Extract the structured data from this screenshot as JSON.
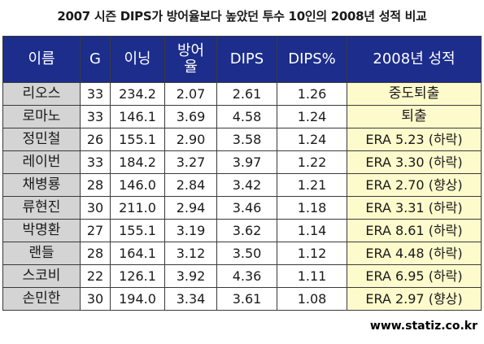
{
  "title": "2007 시즌 DIPS가 방어율보다 높았던 투수 10인의 2008년 성적 비교",
  "columns": {
    "name": "이름",
    "games": "G",
    "innings": "이닝",
    "era": "방어\n율",
    "dips": "DIPS",
    "dips_pct": "DIPS%",
    "result": "2008년 성적"
  },
  "rows": [
    {
      "name": "리오스",
      "g": "33",
      "ip": "234.2",
      "era": "2.07",
      "dips": "2.61",
      "pct": "1.26",
      "result": "중도퇴출"
    },
    {
      "name": "로마노",
      "g": "33",
      "ip": "146.1",
      "era": "3.69",
      "dips": "4.58",
      "pct": "1.24",
      "result": "퇴출"
    },
    {
      "name": "정민철",
      "g": "26",
      "ip": "155.1",
      "era": "2.90",
      "dips": "3.58",
      "pct": "1.24",
      "result": "ERA 5.23 (하락)"
    },
    {
      "name": "레이번",
      "g": "33",
      "ip": "184.2",
      "era": "3.27",
      "dips": "3.97",
      "pct": "1.22",
      "result": "ERA 3.30 (하락)"
    },
    {
      "name": "채병룡",
      "g": "28",
      "ip": "146.0",
      "era": "2.84",
      "dips": "3.42",
      "pct": "1.21",
      "result": "ERA 2.70 (향상)"
    },
    {
      "name": "류현진",
      "g": "30",
      "ip": "211.0",
      "era": "2.94",
      "dips": "3.46",
      "pct": "1.18",
      "result": "ERA 3.31 (하락)"
    },
    {
      "name": "박명환",
      "g": "27",
      "ip": "155.1",
      "era": "3.19",
      "dips": "3.62",
      "pct": "1.14",
      "result": "ERA 8.61 (하락)"
    },
    {
      "name": "랜들",
      "g": "28",
      "ip": "164.1",
      "era": "3.12",
      "dips": "3.50",
      "pct": "1.12",
      "result": "ERA 4.48 (하락)"
    },
    {
      "name": "스코비",
      "g": "22",
      "ip": "126.1",
      "era": "3.92",
      "dips": "4.36",
      "pct": "1.11",
      "result": "ERA 6.95 (하락)"
    },
    {
      "name": "손민한",
      "g": "30",
      "ip": "194.0",
      "era": "3.34",
      "dips": "3.61",
      "pct": "1.08",
      "result": "ERA 2.97 (향상)"
    }
  ],
  "source": "www.statiz.co.kr",
  "colors": {
    "header_bg": "#1c2d8c",
    "header_text": "#ffffff",
    "name_cell_bg": "#d4d4d4",
    "result_cell_bg": "#fdfbcc",
    "border": "#3a3a3a"
  }
}
